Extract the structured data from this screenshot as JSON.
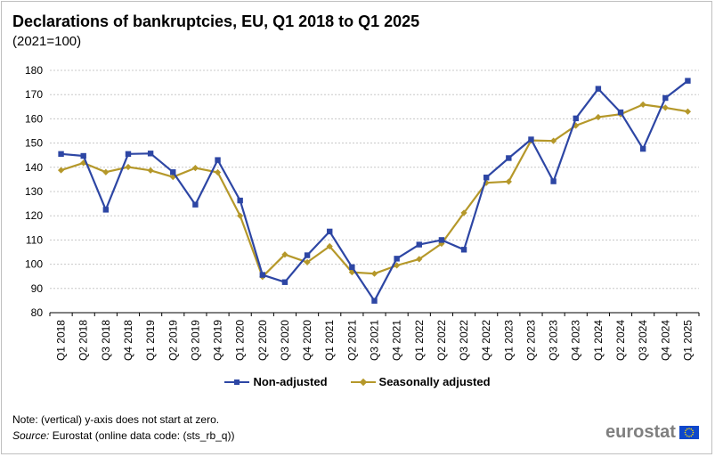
{
  "title": "Declarations of bankruptcies, EU, Q1 2018 to Q1 2025",
  "subtitle": "(2021=100)",
  "note": "Note: (vertical) y-axis does not start at zero.",
  "source_label": "Source:",
  "source_text": " Eurostat (online data code: (sts_rb_q))",
  "logo_text": "eurostat",
  "colors": {
    "non_adjusted": "#2d46a4",
    "seasonally_adjusted": "#b5982a",
    "grid": "#c8c8c8",
    "axis": "#000000"
  },
  "chart_data": {
    "type": "line",
    "title": "Declarations of bankruptcies, EU, Q1 2018 to Q1 2025",
    "subtitle": "(2021=100)",
    "xlabel": "",
    "ylabel": "",
    "ylim": [
      80,
      180
    ],
    "yticks": [
      80,
      90,
      100,
      110,
      120,
      130,
      140,
      150,
      160,
      170,
      180
    ],
    "grid": "horizontal dotted",
    "legend_position": "bottom",
    "categories": [
      "Q1 2018",
      "Q2 2018",
      "Q3 2018",
      "Q4 2018",
      "Q1 2019",
      "Q2 2019",
      "Q3 2019",
      "Q4 2019",
      "Q1 2020",
      "Q2 2020",
      "Q3 2020",
      "Q4 2020",
      "Q1 2021",
      "Q2 2021",
      "Q3 2021",
      "Q4 2021",
      "Q1 2022",
      "Q2 2022",
      "Q3 2022",
      "Q4 2022",
      "Q1 2023",
      "Q2 2023",
      "Q3 2023",
      "Q4 2023",
      "Q1 2024",
      "Q2 2024",
      "Q3 2024",
      "Q4 2024",
      "Q1 2025"
    ],
    "series": [
      {
        "name": "Non-adjusted",
        "marker": "square",
        "values": [
          145.5,
          144.7,
          122.5,
          145.5,
          145.7,
          138.0,
          124.6,
          143.0,
          126.3,
          95.6,
          92.6,
          103.7,
          113.5,
          98.8,
          84.9,
          102.3,
          108.1,
          110.0,
          106.0,
          135.8,
          143.8,
          151.5,
          134.2,
          160.2,
          172.4,
          162.7,
          147.6,
          168.6,
          175.7
        ]
      },
      {
        "name": "Seasonally adjusted",
        "marker": "diamond",
        "values": [
          138.8,
          141.8,
          138.0,
          140.1,
          138.7,
          136.0,
          139.7,
          137.9,
          120.0,
          94.8,
          104.0,
          100.8,
          107.4,
          96.7,
          96.1,
          99.5,
          102.1,
          108.5,
          121.2,
          133.6,
          134.1,
          151.1,
          150.9,
          157.2,
          160.7,
          161.9,
          165.9,
          164.6,
          163.0
        ]
      }
    ]
  }
}
